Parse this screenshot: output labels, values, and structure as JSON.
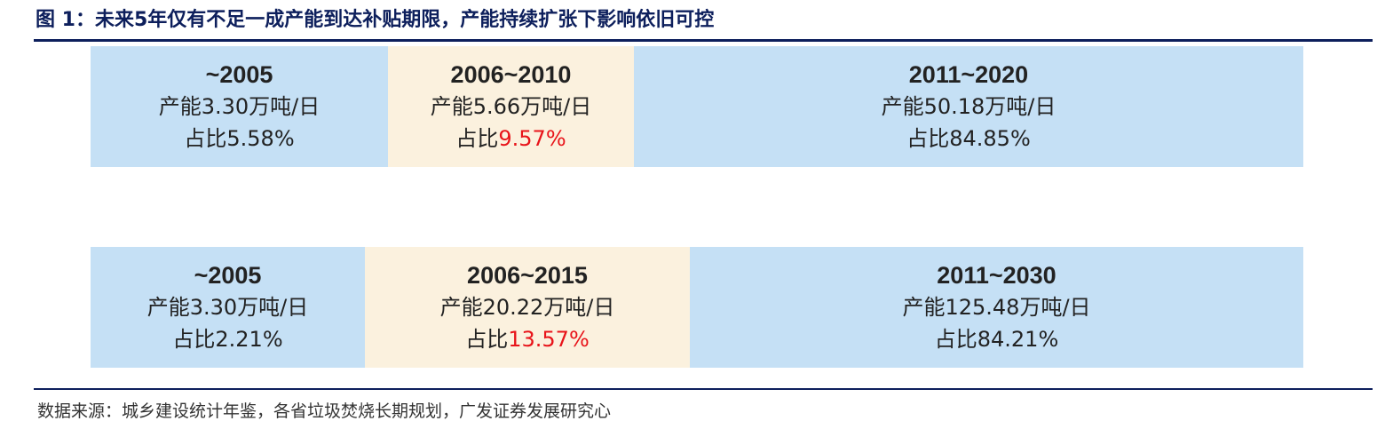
{
  "title": "图 1：未来5年仅有不足一成产能到达补贴期限，产能持续扩张下影响依旧可控",
  "colors": {
    "blue": "#c5e0f5",
    "beige": "#fbf1de",
    "highlight": "#e8141a",
    "title": "#0d1f5c"
  },
  "rows": [
    {
      "segments": [
        {
          "period": "~2005",
          "capacity": "产能3.30万吨/日",
          "share_label": "占比",
          "share_value": "5.58%",
          "highlight": false
        },
        {
          "period": "2006~2010",
          "capacity": "产能5.66万吨/日",
          "share_label": "占比",
          "share_value": "9.57%",
          "highlight": true
        },
        {
          "period": "2011~2020",
          "capacity": "产能50.18万吨/日",
          "share_label": "占比",
          "share_value": "84.85%",
          "highlight": false
        }
      ]
    },
    {
      "segments": [
        {
          "period": "~2005",
          "capacity": "产能3.30万吨/日",
          "share_label": "占比",
          "share_value": "2.21%",
          "highlight": false
        },
        {
          "period": "2006~2015",
          "capacity": "产能20.22万吨/日",
          "share_label": "占比",
          "share_value": "13.57%",
          "highlight": true
        },
        {
          "period": "2011~2030",
          "capacity": "产能125.48万吨/日",
          "share_label": "占比",
          "share_value": "84.21%",
          "highlight": false
        }
      ]
    }
  ],
  "source": "数据来源：城乡建设统计年鉴，各省垃圾焚烧长期规划，广发证券发展研究心"
}
